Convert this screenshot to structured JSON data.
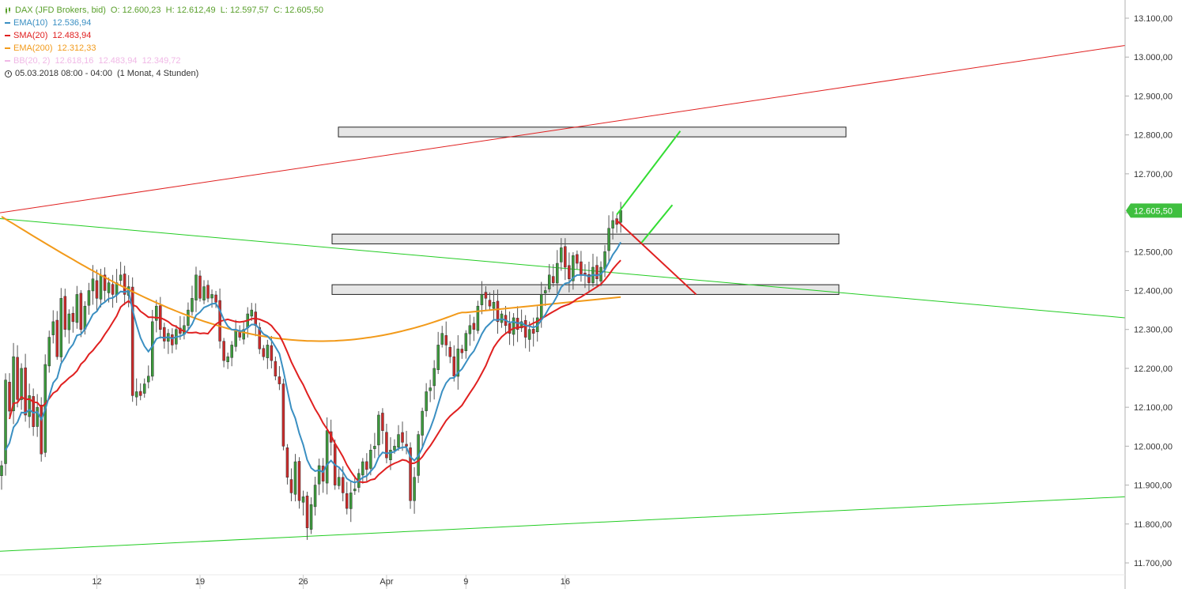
{
  "legend": {
    "title": "DAX (JFD Brokers, bid)",
    "ohlc": "O: 12.600,23  H: 12.612,49  L: 12.597,57  C: 12.605,50",
    "indicators": [
      {
        "name": "EMA(10)",
        "value": "12.536,94",
        "color": "#3a8fc2"
      },
      {
        "name": "SMA(20)",
        "value": "12.483,94",
        "color": "#e02020"
      },
      {
        "name": "EMA(200)",
        "value": "12.312,33",
        "color": "#f29a1a"
      },
      {
        "name": "BB(20, 2)",
        "value": "12.618,16  12.483,94  12.349,72",
        "color": "#f0b8e6"
      }
    ],
    "timeframe": "05.03.2018 08:00 - 04:00",
    "range": "(1 Monat, 4 Stunden)"
  },
  "price_tag": "12.605,50",
  "chart_data": {
    "type": "candlestick",
    "title": "DAX (JFD Brokers, bid)",
    "ylim": [
      11670,
      13140
    ],
    "y_ticks": [
      "11.700,00",
      "11.800,00",
      "11.900,00",
      "12.000,00",
      "12.100,00",
      "12.200,00",
      "12.300,00",
      "12.400,00",
      "12.500,00",
      "12.600,00",
      "12.700,00",
      "12.800,00",
      "12.900,00",
      "13.000,00",
      "13.100,00"
    ],
    "y_tick_values": [
      11700,
      11800,
      11900,
      12000,
      12100,
      12200,
      12300,
      12400,
      12500,
      12600,
      12700,
      12800,
      12900,
      13000,
      13100
    ],
    "x_ticks": [
      "12",
      "19",
      "26",
      "Apr",
      "9",
      "16"
    ],
    "x_tick_bar_index": [
      24,
      50,
      76,
      97,
      117,
      142
    ],
    "grid": false,
    "last_close": 12605.5,
    "candles_close_approx": [
      11950,
      12170,
      12090,
      12230,
      12120,
      12200,
      12080,
      12130,
      12050,
      12100,
      11980,
      12210,
      12280,
      12320,
      12230,
      12380,
      12300,
      12340,
      12320,
      12390,
      12300,
      12360,
      12400,
      12430,
      12380,
      12440,
      12400,
      12420,
      12390,
      12420,
      12440,
      12390,
      12410,
      12130,
      12140,
      12130,
      12160,
      12180,
      12320,
      12360,
      12300,
      12270,
      12290,
      12260,
      12300,
      12290,
      12310,
      12350,
      12380,
      12440,
      12380,
      12410,
      12380,
      12390,
      12370,
      12270,
      12220,
      12230,
      12260,
      12300,
      12280,
      12300,
      12340,
      12350,
      12310,
      12250,
      12230,
      12260,
      12220,
      12180,
      12160,
      12000,
      11920,
      11880,
      11960,
      11860,
      11870,
      11790,
      11850,
      11900,
      11950,
      11910,
      12040,
      12010,
      11900,
      11920,
      11880,
      11840,
      11880,
      11890,
      11930,
      11960,
      11940,
      11990,
      12000,
      12080,
      12040,
      11970,
      11990,
      12000,
      12030,
      12010,
      12000,
      11860,
      11920,
      12030,
      12090,
      12140,
      12150,
      12200,
      12260,
      12290,
      12260,
      12230,
      12180,
      12250,
      12240,
      12290,
      12310,
      12300,
      12360,
      12390,
      12380,
      12360,
      12370,
      12320,
      12340,
      12310,
      12290,
      12330,
      12300,
      12320,
      12280,
      12300,
      12290,
      12330,
      12390,
      12400,
      12440,
      12420,
      12470,
      12510,
      12460,
      12430,
      12490,
      12470,
      12440,
      12440,
      12420,
      12460,
      12430,
      12460,
      12500,
      12560,
      12580,
      12570,
      12605.5
    ],
    "series": [
      {
        "name": "EMA(10)",
        "color": "#3a8fc2",
        "last_value": 12536.94
      },
      {
        "name": "SMA(20)",
        "color": "#e02020",
        "last_value": 12483.94
      },
      {
        "name": "EMA(200)",
        "color": "#f29a1a",
        "last_value": 12312.33
      }
    ],
    "zones": [
      {
        "from": 12795,
        "to": 12820,
        "color": "#e6e6e6"
      },
      {
        "from": 12520,
        "to": 12545,
        "color": "#e6e6e6"
      },
      {
        "from": 12390,
        "to": 12415,
        "color": "#e6e6e6"
      }
    ],
    "trendlines": [
      {
        "color": "#e02020",
        "from": {
          "bar": 0,
          "price": 12600
        },
        "to": {
          "bar": 283,
          "price": 13030
        }
      },
      {
        "color": "#22cc22",
        "from": {
          "bar": 0,
          "price": 12585
        },
        "to": {
          "bar": 283,
          "price": 12330
        }
      },
      {
        "color": "#22cc22",
        "from": {
          "bar": 0,
          "price": 11730
        },
        "to": {
          "bar": 283,
          "price": 11870
        }
      }
    ],
    "projections": [
      {
        "color": "#33dd33",
        "from": {
          "bar": 155,
          "price": 12595
        },
        "to": {
          "bar": 171,
          "price": 12810
        }
      },
      {
        "color": "#33dd33",
        "from": {
          "bar": 161,
          "price": 12520
        },
        "to": {
          "bar": 169,
          "price": 12620
        }
      },
      {
        "color": "#e02020",
        "from": {
          "bar": 155,
          "price": 12580
        },
        "to": {
          "bar": 175,
          "price": 12390
        }
      }
    ]
  }
}
